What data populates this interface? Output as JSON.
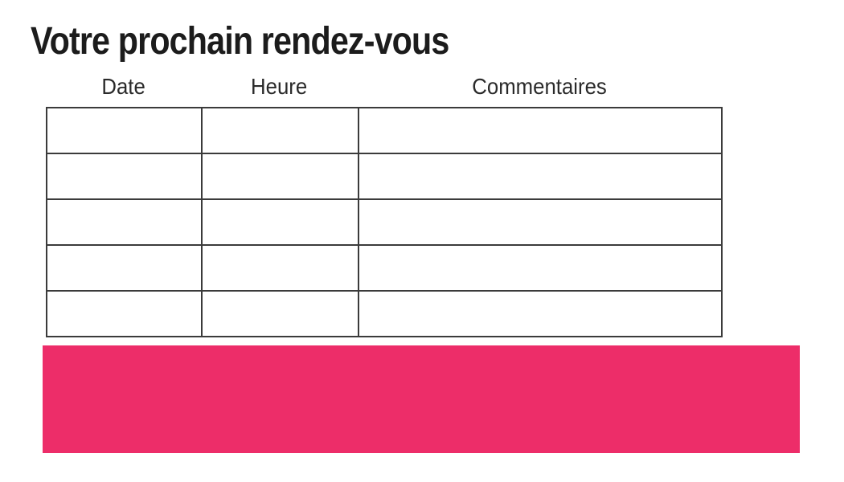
{
  "page": {
    "title": "Votre prochain rendez-vous"
  },
  "table": {
    "columns": [
      {
        "label": "Date"
      },
      {
        "label": "Heure"
      },
      {
        "label": "Commentaires"
      }
    ],
    "rows": [
      [
        "",
        "",
        ""
      ],
      [
        "",
        "",
        ""
      ],
      [
        "",
        "",
        ""
      ],
      [
        "",
        "",
        ""
      ],
      [
        "",
        "",
        ""
      ]
    ]
  },
  "colors": {
    "accent_pink": "#ED2D69",
    "table_border": "#3B3B3B",
    "text": "#1C1C1C"
  }
}
